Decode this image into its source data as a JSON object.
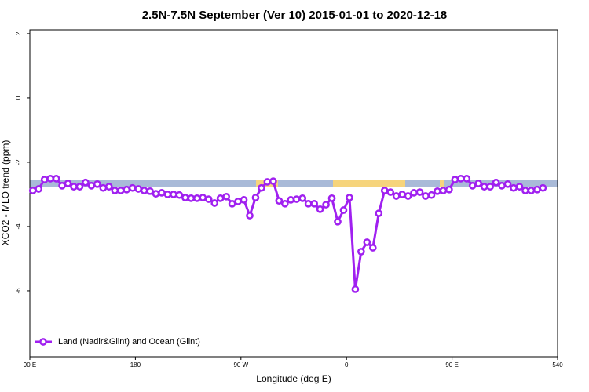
{
  "chart_data": {
    "type": "line",
    "title": "2.5N-7.5N September (Ver 10)   2015-01-01 to 2020-12-18",
    "x_label": "Longitude (deg E)",
    "y_label": "XCO2 - MLO trend (ppm)",
    "xlim": [
      90,
      540
    ],
    "xticks": [
      {
        "value": 90,
        "label": "90 E"
      },
      180,
      {
        "value": 270,
        "label": "90 W"
      },
      {
        "value": 360,
        "label": "0"
      },
      {
        "value": 450,
        "label": "90 E"
      },
      540
    ],
    "ylim": [
      -8.05,
      2.12
    ],
    "yticks": [
      2,
      0,
      -2,
      -4,
      -6
    ],
    "legend": "bottom-left",
    "x": [
      92.5,
      97.5,
      102.5,
      107.5,
      112.5,
      117.5,
      122.5,
      127.5,
      132.5,
      137.5,
      142.5,
      147.5,
      152.5,
      157.5,
      162.5,
      167.5,
      172.5,
      177.5,
      182.5,
      187.5,
      192.5,
      197.5,
      202.5,
      207.5,
      212.5,
      217.5,
      222.5,
      227.5,
      232.5,
      237.5,
      242.5,
      247.5,
      252.5,
      257.5,
      262.5,
      267.5,
      272.5,
      277.5,
      282.5,
      287.5,
      292.5,
      297.5,
      302.5,
      307.5,
      312.5,
      317.5,
      322.5,
      327.5,
      332.5,
      337.5,
      342.5,
      347.5,
      352.5,
      357.5,
      362.5,
      367.5,
      372.5,
      377.5,
      382.5,
      387.5,
      392.5,
      397.5,
      402.5,
      407.5,
      412.5,
      417.5,
      422.5,
      427.5,
      432.5,
      437.5,
      442.5,
      447.5,
      452.5,
      457.5,
      462.5,
      467.5,
      472.5,
      477.5,
      482.5,
      487.5,
      492.5,
      497.5,
      502.5,
      507.5,
      512.5,
      517.5,
      522.5,
      527.5
    ],
    "series": [
      {
        "name": "Land (Nadir&Glint) and Ocean (Glint)",
        "color": "#a020f0",
        "values": [
          -2.88,
          -2.83,
          -2.54,
          -2.51,
          -2.51,
          -2.73,
          -2.66,
          -2.76,
          -2.76,
          -2.63,
          -2.73,
          -2.68,
          -2.8,
          -2.76,
          -2.88,
          -2.88,
          -2.85,
          -2.8,
          -2.83,
          -2.88,
          -2.9,
          -2.98,
          -2.95,
          -3.0,
          -3.0,
          -3.02,
          -3.1,
          -3.12,
          -3.12,
          -3.1,
          -3.15,
          -3.27,
          -3.12,
          -3.07,
          -3.29,
          -3.22,
          -3.17,
          -3.66,
          -3.1,
          -2.8,
          -2.61,
          -2.59,
          -3.2,
          -3.29,
          -3.17,
          -3.15,
          -3.12,
          -3.29,
          -3.29,
          -3.46,
          -3.32,
          -3.12,
          -3.85,
          -3.49,
          -3.1,
          -5.95,
          -4.78,
          -4.49,
          -4.66,
          -3.59,
          -2.88,
          -2.93,
          -3.05,
          -3.0,
          -3.05,
          -2.95,
          -2.93,
          -3.05,
          -3.02,
          -2.9,
          -2.88,
          -2.85,
          -2.54,
          -2.51,
          -2.51,
          -2.73,
          -2.66,
          -2.76,
          -2.76,
          -2.63,
          -2.73,
          -2.68,
          -2.8,
          -2.76,
          -2.88,
          -2.88,
          -2.85,
          -2.8
        ]
      }
    ]
  }
}
